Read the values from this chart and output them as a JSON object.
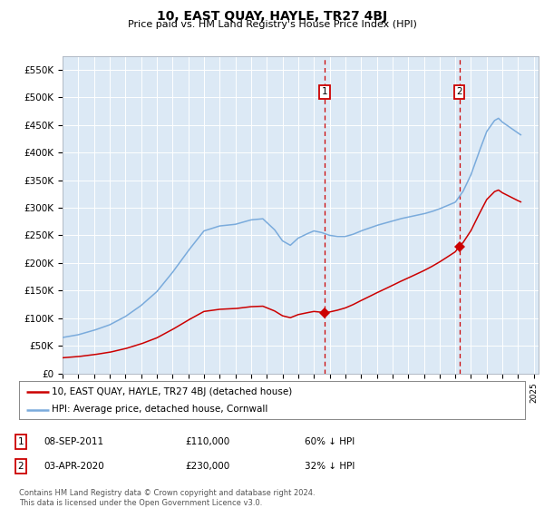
{
  "title": "10, EAST QUAY, HAYLE, TR27 4BJ",
  "subtitle": "Price paid vs. HM Land Registry's House Price Index (HPI)",
  "ylim": [
    0,
    575000
  ],
  "yticks": [
    0,
    50000,
    100000,
    150000,
    200000,
    250000,
    300000,
    350000,
    400000,
    450000,
    500000,
    550000
  ],
  "ytick_labels": [
    "£0",
    "£50K",
    "£100K",
    "£150K",
    "£200K",
    "£250K",
    "£300K",
    "£350K",
    "£400K",
    "£450K",
    "£500K",
    "£550K"
  ],
  "hpi_color": "#7aabdc",
  "price_color": "#cc0000",
  "plot_bg_color": "#dce9f5",
  "grid_color": "#ffffff",
  "transaction1_date": 2011.69,
  "transaction1_price": 110000,
  "transaction2_date": 2020.25,
  "transaction2_price": 230000,
  "legend_label1": "10, EAST QUAY, HAYLE, TR27 4BJ (detached house)",
  "legend_label2": "HPI: Average price, detached house, Cornwall",
  "annotation1_label": "1",
  "annotation1_date": "08-SEP-2011",
  "annotation1_price": "£110,000",
  "annotation1_pct": "60% ↓ HPI",
  "annotation2_label": "2",
  "annotation2_date": "03-APR-2020",
  "annotation2_price": "£230,000",
  "annotation2_pct": "32% ↓ HPI",
  "footer": "Contains HM Land Registry data © Crown copyright and database right 2024.\nThis data is licensed under the Open Government Licence v3.0."
}
